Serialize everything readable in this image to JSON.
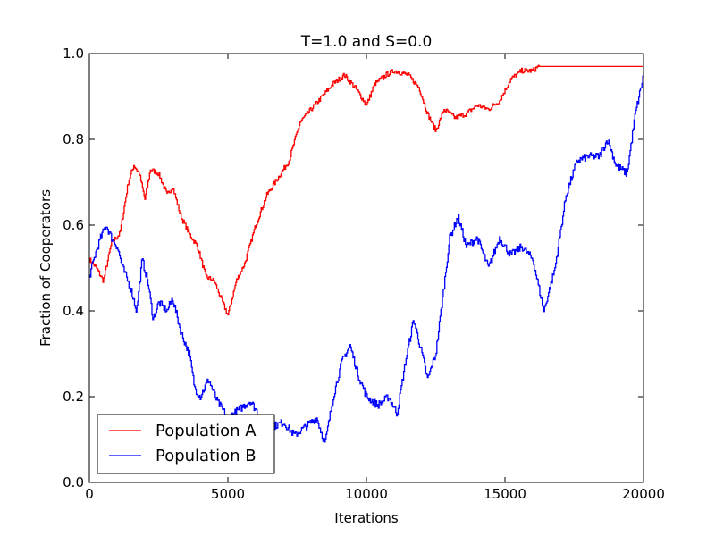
{
  "chart_data": {
    "type": "line",
    "title": "T=1.0 and S=0.0",
    "xlabel": "Iterations",
    "ylabel": "Fraction of Cooperators",
    "xlim": [
      0,
      20000
    ],
    "ylim": [
      0.0,
      1.0
    ],
    "xticks": [
      0,
      5000,
      10000,
      15000,
      20000
    ],
    "xtick_labels": [
      "0",
      "5000",
      "10000",
      "15000",
      "20000"
    ],
    "yticks": [
      0.0,
      0.2,
      0.4,
      0.6,
      0.8,
      1.0
    ],
    "ytick_labels": [
      "0.0",
      "0.2",
      "0.4",
      "0.6",
      "0.8",
      "1.0"
    ],
    "grid": false,
    "legend_position": "lower-left",
    "series": [
      {
        "name": "Population A",
        "color": "#ff0000",
        "x": [
          0,
          250,
          500,
          800,
          1100,
          1400,
          1600,
          1800,
          2000,
          2200,
          2500,
          2800,
          3000,
          3300,
          3600,
          3900,
          4200,
          4500,
          4800,
          5000,
          5300,
          5600,
          6000,
          6400,
          6800,
          7200,
          7600,
          8000,
          8400,
          8800,
          9200,
          9600,
          10000,
          10300,
          10700,
          11000,
          11500,
          11900,
          12200,
          12500,
          12800,
          13200,
          13600,
          14000,
          14400,
          14800,
          15200,
          15600,
          16000,
          16200,
          17000,
          18000,
          19000,
          20000
        ],
        "y": [
          0.52,
          0.5,
          0.47,
          0.56,
          0.58,
          0.7,
          0.74,
          0.72,
          0.66,
          0.73,
          0.72,
          0.67,
          0.69,
          0.62,
          0.58,
          0.55,
          0.48,
          0.47,
          0.42,
          0.39,
          0.47,
          0.51,
          0.6,
          0.67,
          0.71,
          0.75,
          0.84,
          0.87,
          0.9,
          0.93,
          0.95,
          0.92,
          0.88,
          0.93,
          0.95,
          0.96,
          0.95,
          0.92,
          0.86,
          0.82,
          0.87,
          0.85,
          0.86,
          0.88,
          0.87,
          0.89,
          0.94,
          0.96,
          0.96,
          0.97,
          0.97,
          0.97,
          0.97,
          0.97
        ]
      },
      {
        "name": "Population B",
        "color": "#0000ff",
        "x": [
          0,
          200,
          400,
          600,
          800,
          1000,
          1200,
          1500,
          1700,
          1900,
          2100,
          2300,
          2500,
          2800,
          3000,
          3300,
          3600,
          3800,
          4000,
          4300,
          4600,
          5000,
          5400,
          5800,
          6200,
          6600,
          7000,
          7400,
          7800,
          8200,
          8500,
          8800,
          9100,
          9400,
          9700,
          10000,
          10400,
          10800,
          11100,
          11400,
          11700,
          12000,
          12200,
          12500,
          12800,
          13000,
          13300,
          13600,
          14000,
          14400,
          14800,
          15200,
          15600,
          16000,
          16400,
          16800,
          17200,
          17600,
          18000,
          18400,
          18700,
          19000,
          19400,
          19700,
          20000
        ],
        "y": [
          0.48,
          0.53,
          0.57,
          0.6,
          0.57,
          0.55,
          0.5,
          0.45,
          0.4,
          0.52,
          0.47,
          0.38,
          0.42,
          0.4,
          0.43,
          0.35,
          0.3,
          0.22,
          0.2,
          0.24,
          0.19,
          0.15,
          0.17,
          0.19,
          0.15,
          0.13,
          0.14,
          0.11,
          0.13,
          0.15,
          0.09,
          0.2,
          0.28,
          0.32,
          0.25,
          0.2,
          0.18,
          0.2,
          0.16,
          0.28,
          0.38,
          0.3,
          0.24,
          0.3,
          0.46,
          0.57,
          0.62,
          0.55,
          0.57,
          0.5,
          0.57,
          0.53,
          0.55,
          0.52,
          0.4,
          0.5,
          0.67,
          0.75,
          0.76,
          0.76,
          0.8,
          0.74,
          0.72,
          0.86,
          0.95
        ]
      }
    ]
  }
}
